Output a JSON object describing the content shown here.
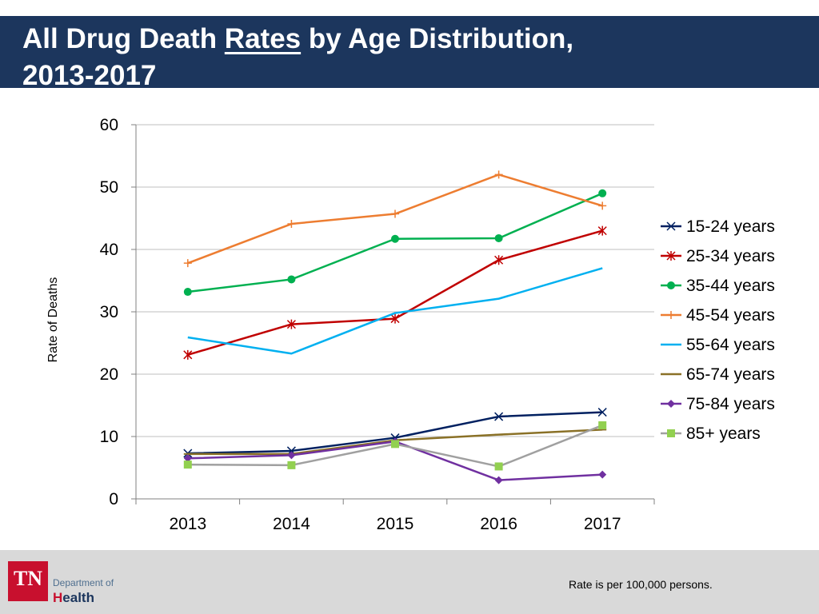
{
  "header": {
    "title_part1": "All Drug Death ",
    "title_underlined": "Rates",
    "title_part2": " by Age Distribution,",
    "title_line2": "2013-2017",
    "background_color": "#1c365d"
  },
  "footer": {
    "logo_mark": "TN",
    "logo_dept": "Department of",
    "logo_health_initial": "H",
    "logo_health_rest": "ealth",
    "note": "Rate is per 100,000 persons."
  },
  "chart_data": {
    "type": "line",
    "title": "All Drug Death Rates by Age Distribution, 2013-2017",
    "xlabel": "",
    "ylabel": "Rate of Deaths",
    "x": [
      "2013",
      "2014",
      "2015",
      "2016",
      "2017"
    ],
    "ylim": [
      0,
      60
    ],
    "yticks": [
      0,
      10,
      20,
      30,
      40,
      50,
      60
    ],
    "grid": true,
    "legend_position": "right",
    "series": [
      {
        "name": "15-24 years",
        "color": "#002060",
        "marker": "x",
        "values": [
          7.3,
          7.7,
          9.8,
          13.2,
          13.9
        ]
      },
      {
        "name": "25-34 years",
        "color": "#c00000",
        "marker": "asterisk",
        "values": [
          23.1,
          28.0,
          28.9,
          38.3,
          43.0
        ]
      },
      {
        "name": "35-44 years",
        "color": "#00b050",
        "marker": "circle",
        "values": [
          33.2,
          35.2,
          41.7,
          41.8,
          49.0
        ]
      },
      {
        "name": "45-54 years",
        "color": "#ed7d31",
        "marker": "plus",
        "values": [
          37.8,
          44.1,
          45.7,
          52.0,
          47.0
        ]
      },
      {
        "name": "55-64 years",
        "color": "#00b0f0",
        "marker": "none",
        "values": [
          25.9,
          23.3,
          29.8,
          32.1,
          37.0
        ]
      },
      {
        "name": "65-74 years",
        "color": "#8a7127",
        "marker": "dash",
        "values": [
          7.2,
          7.2,
          9.4,
          10.3,
          11.1
        ]
      },
      {
        "name": "75-84 years",
        "color": "#7030a0",
        "marker": "diamond",
        "values": [
          6.5,
          7.0,
          9.2,
          3.0,
          3.9
        ]
      },
      {
        "name": "85+ years",
        "color": "#a0a0a0",
        "marker": "square",
        "marker_color": "#92d050",
        "values": [
          5.5,
          5.4,
          8.8,
          5.2,
          11.8
        ]
      }
    ]
  }
}
